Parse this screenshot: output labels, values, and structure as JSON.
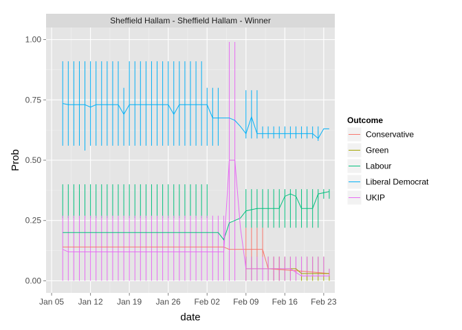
{
  "chart_data": {
    "type": "line",
    "title": "Sheffield Hallam - Sheffield Hallam - Winner",
    "xlabel": "date",
    "ylabel": "Prob",
    "xlim": [
      "2015-01-04",
      "2015-02-25"
    ],
    "ylim": [
      -0.05,
      1.05
    ],
    "x_ticks": [
      {
        "date": "2015-01-05",
        "label": "Jan 05"
      },
      {
        "date": "2015-01-12",
        "label": "Jan 12"
      },
      {
        "date": "2015-01-19",
        "label": "Jan 19"
      },
      {
        "date": "2015-01-26",
        "label": "Jan 26"
      },
      {
        "date": "2015-02-02",
        "label": "Feb 02"
      },
      {
        "date": "2015-02-09",
        "label": "Feb 09"
      },
      {
        "date": "2015-02-16",
        "label": "Feb 16"
      },
      {
        "date": "2015-02-23",
        "label": "Feb 23"
      }
    ],
    "y_ticks": [
      {
        "value": 0.0,
        "label": "0.00"
      },
      {
        "value": 0.25,
        "label": "0.25"
      },
      {
        "value": 0.5,
        "label": "0.50"
      },
      {
        "value": 0.75,
        "label": "0.75"
      },
      {
        "value": 1.0,
        "label": "1.00"
      }
    ],
    "grid": true,
    "legend": {
      "title": "Outcome",
      "position": "right"
    },
    "series": [
      {
        "name": "Conservative",
        "color": "#F8766D",
        "line": [
          [
            "2015-01-07",
            0.14
          ],
          [
            "2015-02-05",
            0.14
          ],
          [
            "2015-02-06",
            0.13
          ],
          [
            "2015-02-09",
            0.13
          ],
          [
            "2015-02-12",
            0.13
          ],
          [
            "2015-02-13",
            0.05
          ],
          [
            "2015-02-19",
            0.04
          ],
          [
            "2015-02-24",
            0.03
          ]
        ],
        "bars": [
          [
            "2015-02-09",
            0.05,
            0.22
          ],
          [
            "2015-02-10",
            0.05,
            0.22
          ],
          [
            "2015-02-11",
            0.05,
            0.22
          ],
          [
            "2015-02-12",
            0.05,
            0.22
          ],
          [
            "2015-02-13",
            0.0,
            0.1
          ],
          [
            "2015-02-14",
            0.0,
            0.1
          ],
          [
            "2015-02-15",
            0.0,
            0.1
          ]
        ]
      },
      {
        "name": "Green",
        "color": "#A3A500",
        "line": [
          [
            "2015-02-09",
            0.05
          ],
          [
            "2015-02-18",
            0.05
          ],
          [
            "2015-02-19",
            0.03
          ],
          [
            "2015-02-24",
            0.03
          ]
        ],
        "bars": [
          [
            "2015-02-09",
            0.0,
            0.1
          ],
          [
            "2015-02-10",
            0.0,
            0.1
          ],
          [
            "2015-02-11",
            0.0,
            0.1
          ],
          [
            "2015-02-12",
            0.0,
            0.1
          ],
          [
            "2015-02-13",
            0.0,
            0.1
          ],
          [
            "2015-02-14",
            0.0,
            0.1
          ],
          [
            "2015-02-15",
            0.0,
            0.1
          ],
          [
            "2015-02-16",
            0.0,
            0.1
          ],
          [
            "2015-02-17",
            0.0,
            0.1
          ],
          [
            "2015-02-18",
            0.0,
            0.1
          ],
          [
            "2015-02-19",
            0.0,
            0.1
          ],
          [
            "2015-02-20",
            0.0,
            0.1
          ],
          [
            "2015-02-21",
            0.0,
            0.1
          ],
          [
            "2015-02-22",
            0.0,
            0.1
          ],
          [
            "2015-02-23",
            0.0,
            0.1
          ],
          [
            "2015-02-24",
            0.0,
            0.05
          ]
        ]
      },
      {
        "name": "Labour",
        "color": "#00BF7D",
        "line": [
          [
            "2015-01-07",
            0.2
          ],
          [
            "2015-02-04",
            0.2
          ],
          [
            "2015-02-05",
            0.17
          ],
          [
            "2015-02-06",
            0.24
          ],
          [
            "2015-02-07",
            0.25
          ],
          [
            "2015-02-08",
            0.26
          ],
          [
            "2015-02-09",
            0.29
          ],
          [
            "2015-02-11",
            0.3
          ],
          [
            "2015-02-15",
            0.3
          ],
          [
            "2015-02-16",
            0.35
          ],
          [
            "2015-02-17",
            0.36
          ],
          [
            "2015-02-18",
            0.35
          ],
          [
            "2015-02-19",
            0.3
          ],
          [
            "2015-02-21",
            0.3
          ],
          [
            "2015-02-22",
            0.36
          ],
          [
            "2015-02-24",
            0.37
          ]
        ],
        "bars": [
          [
            "2015-01-07",
            0.26,
            0.4
          ],
          [
            "2015-01-08",
            0.26,
            0.4
          ],
          [
            "2015-01-09",
            0.26,
            0.4
          ],
          [
            "2015-01-10",
            0.26,
            0.4
          ],
          [
            "2015-01-11",
            0.26,
            0.4
          ],
          [
            "2015-01-12",
            0.26,
            0.4
          ],
          [
            "2015-01-13",
            0.26,
            0.4
          ],
          [
            "2015-01-14",
            0.26,
            0.4
          ],
          [
            "2015-01-15",
            0.26,
            0.4
          ],
          [
            "2015-01-16",
            0.26,
            0.4
          ],
          [
            "2015-01-17",
            0.26,
            0.4
          ],
          [
            "2015-01-18",
            0.26,
            0.4
          ],
          [
            "2015-01-19",
            0.26,
            0.4
          ],
          [
            "2015-01-20",
            0.26,
            0.4
          ],
          [
            "2015-01-21",
            0.26,
            0.4
          ],
          [
            "2015-01-22",
            0.26,
            0.4
          ],
          [
            "2015-01-23",
            0.26,
            0.4
          ],
          [
            "2015-01-24",
            0.26,
            0.4
          ],
          [
            "2015-01-25",
            0.26,
            0.4
          ],
          [
            "2015-01-26",
            0.26,
            0.4
          ],
          [
            "2015-01-27",
            0.26,
            0.4
          ],
          [
            "2015-01-28",
            0.26,
            0.4
          ],
          [
            "2015-01-29",
            0.26,
            0.4
          ],
          [
            "2015-01-30",
            0.26,
            0.4
          ],
          [
            "2015-01-31",
            0.26,
            0.4
          ],
          [
            "2015-02-01",
            0.26,
            0.4
          ],
          [
            "2015-02-02",
            0.26,
            0.4
          ],
          [
            "2015-02-09",
            0.22,
            0.38
          ],
          [
            "2015-02-10",
            0.22,
            0.38
          ],
          [
            "2015-02-11",
            0.22,
            0.38
          ],
          [
            "2015-02-12",
            0.22,
            0.38
          ],
          [
            "2015-02-13",
            0.22,
            0.38
          ],
          [
            "2015-02-14",
            0.22,
            0.38
          ],
          [
            "2015-02-15",
            0.22,
            0.38
          ],
          [
            "2015-02-16",
            0.22,
            0.38
          ],
          [
            "2015-02-17",
            0.22,
            0.38
          ],
          [
            "2015-02-18",
            0.22,
            0.38
          ],
          [
            "2015-02-19",
            0.22,
            0.38
          ],
          [
            "2015-02-20",
            0.22,
            0.38
          ],
          [
            "2015-02-21",
            0.22,
            0.38
          ],
          [
            "2015-02-22",
            0.22,
            0.38
          ],
          [
            "2015-02-23",
            0.34,
            0.38
          ],
          [
            "2015-02-24",
            0.34,
            0.38
          ]
        ]
      },
      {
        "name": "Liberal Democrat",
        "color": "#00B0F6",
        "line": [
          [
            "2015-01-07",
            0.735
          ],
          [
            "2015-01-08",
            0.73
          ],
          [
            "2015-01-11",
            0.73
          ],
          [
            "2015-01-12",
            0.72
          ],
          [
            "2015-01-13",
            0.73
          ],
          [
            "2015-01-17",
            0.73
          ],
          [
            "2015-01-18",
            0.69
          ],
          [
            "2015-01-19",
            0.73
          ],
          [
            "2015-01-26",
            0.73
          ],
          [
            "2015-01-27",
            0.69
          ],
          [
            "2015-01-28",
            0.73
          ],
          [
            "2015-02-02",
            0.73
          ],
          [
            "2015-02-03",
            0.675
          ],
          [
            "2015-02-06",
            0.675
          ],
          [
            "2015-02-07",
            0.665
          ],
          [
            "2015-02-08",
            0.64
          ],
          [
            "2015-02-09",
            0.61
          ],
          [
            "2015-02-10",
            0.68
          ],
          [
            "2015-02-11",
            0.61
          ],
          [
            "2015-02-21",
            0.61
          ],
          [
            "2015-02-22",
            0.59
          ],
          [
            "2015-02-23",
            0.63
          ],
          [
            "2015-02-24",
            0.63
          ]
        ],
        "bars": [
          [
            "2015-01-07",
            0.56,
            0.91
          ],
          [
            "2015-01-08",
            0.56,
            0.91
          ],
          [
            "2015-01-09",
            0.56,
            0.91
          ],
          [
            "2015-01-10",
            0.56,
            0.91
          ],
          [
            "2015-01-11",
            0.54,
            0.91
          ],
          [
            "2015-01-12",
            0.56,
            0.91
          ],
          [
            "2015-01-13",
            0.56,
            0.91
          ],
          [
            "2015-01-14",
            0.56,
            0.91
          ],
          [
            "2015-01-15",
            0.56,
            0.91
          ],
          [
            "2015-01-16",
            0.56,
            0.91
          ],
          [
            "2015-01-17",
            0.56,
            0.91
          ],
          [
            "2015-01-18",
            0.56,
            0.8
          ],
          [
            "2015-01-19",
            0.56,
            0.91
          ],
          [
            "2015-01-20",
            0.56,
            0.91
          ],
          [
            "2015-01-21",
            0.56,
            0.91
          ],
          [
            "2015-01-22",
            0.56,
            0.91
          ],
          [
            "2015-01-23",
            0.56,
            0.91
          ],
          [
            "2015-01-24",
            0.56,
            0.91
          ],
          [
            "2015-01-25",
            0.56,
            0.91
          ],
          [
            "2015-01-26",
            0.56,
            0.91
          ],
          [
            "2015-01-27",
            0.56,
            0.91
          ],
          [
            "2015-01-28",
            0.56,
            0.91
          ],
          [
            "2015-01-29",
            0.56,
            0.91
          ],
          [
            "2015-01-30",
            0.56,
            0.91
          ],
          [
            "2015-01-31",
            0.56,
            0.91
          ],
          [
            "2015-02-01",
            0.56,
            0.91
          ],
          [
            "2015-02-02",
            0.56,
            0.8
          ],
          [
            "2015-02-03",
            0.56,
            0.8
          ],
          [
            "2015-02-04",
            0.56,
            0.8
          ],
          [
            "2015-02-09",
            0.59,
            0.79
          ],
          [
            "2015-02-10",
            0.59,
            0.79
          ],
          [
            "2015-02-11",
            0.59,
            0.79
          ],
          [
            "2015-02-12",
            0.59,
            0.64
          ],
          [
            "2015-02-13",
            0.59,
            0.64
          ],
          [
            "2015-02-14",
            0.59,
            0.64
          ],
          [
            "2015-02-15",
            0.59,
            0.64
          ],
          [
            "2015-02-16",
            0.59,
            0.64
          ],
          [
            "2015-02-17",
            0.59,
            0.64
          ],
          [
            "2015-02-18",
            0.59,
            0.64
          ],
          [
            "2015-02-19",
            0.59,
            0.64
          ],
          [
            "2015-02-20",
            0.59,
            0.64
          ],
          [
            "2015-02-21",
            0.59,
            0.64
          ],
          [
            "2015-02-22",
            0.58,
            0.64
          ]
        ]
      },
      {
        "name": "UKIP",
        "color": "#E76BF3",
        "line": [
          [
            "2015-01-07",
            0.13
          ],
          [
            "2015-01-08",
            0.12
          ],
          [
            "2015-02-05",
            0.12
          ],
          [
            "2015-02-06",
            0.5
          ],
          [
            "2015-02-07",
            0.5
          ],
          [
            "2015-02-08",
            0.22
          ],
          [
            "2015-02-09",
            0.05
          ],
          [
            "2015-02-16",
            0.05
          ],
          [
            "2015-02-17",
            0.05
          ],
          [
            "2015-02-19",
            0.02
          ],
          [
            "2015-02-24",
            0.02
          ]
        ],
        "bars": [
          [
            "2015-01-07",
            0.0,
            0.27
          ],
          [
            "2015-01-08",
            0.0,
            0.27
          ],
          [
            "2015-01-09",
            0.0,
            0.27
          ],
          [
            "2015-01-10",
            0.0,
            0.27
          ],
          [
            "2015-01-11",
            0.0,
            0.27
          ],
          [
            "2015-01-12",
            0.0,
            0.27
          ],
          [
            "2015-01-13",
            0.0,
            0.27
          ],
          [
            "2015-01-14",
            0.0,
            0.27
          ],
          [
            "2015-01-15",
            0.0,
            0.27
          ],
          [
            "2015-01-16",
            0.0,
            0.27
          ],
          [
            "2015-01-17",
            0.0,
            0.27
          ],
          [
            "2015-01-18",
            0.0,
            0.27
          ],
          [
            "2015-01-19",
            0.0,
            0.27
          ],
          [
            "2015-01-20",
            0.0,
            0.27
          ],
          [
            "2015-01-21",
            0.0,
            0.27
          ],
          [
            "2015-01-22",
            0.0,
            0.27
          ],
          [
            "2015-01-23",
            0.0,
            0.27
          ],
          [
            "2015-01-24",
            0.0,
            0.27
          ],
          [
            "2015-01-25",
            0.0,
            0.27
          ],
          [
            "2015-01-26",
            0.0,
            0.27
          ],
          [
            "2015-01-27",
            0.0,
            0.27
          ],
          [
            "2015-01-28",
            0.0,
            0.27
          ],
          [
            "2015-01-29",
            0.0,
            0.27
          ],
          [
            "2015-01-30",
            0.0,
            0.27
          ],
          [
            "2015-01-31",
            0.0,
            0.27
          ],
          [
            "2015-02-01",
            0.0,
            0.27
          ],
          [
            "2015-02-02",
            0.0,
            0.27
          ],
          [
            "2015-02-03",
            0.0,
            0.27
          ],
          [
            "2015-02-04",
            0.0,
            0.27
          ],
          [
            "2015-02-05",
            0.0,
            0.27
          ],
          [
            "2015-02-06",
            0.0,
            0.99
          ],
          [
            "2015-02-07",
            0.0,
            0.99
          ],
          [
            "2015-02-09",
            0.0,
            0.1
          ],
          [
            "2015-02-10",
            0.0,
            0.1
          ],
          [
            "2015-02-11",
            0.0,
            0.1
          ],
          [
            "2015-02-12",
            0.0,
            0.1
          ],
          [
            "2015-02-13",
            0.0,
            0.1
          ],
          [
            "2015-02-14",
            0.0,
            0.1
          ],
          [
            "2015-02-15",
            0.0,
            0.1
          ],
          [
            "2015-02-16",
            0.0,
            0.1
          ],
          [
            "2015-02-17",
            0.0,
            0.1
          ],
          [
            "2015-02-18",
            0.0,
            0.1
          ],
          [
            "2015-02-19",
            0.02,
            0.1
          ],
          [
            "2015-02-20",
            0.02,
            0.1
          ],
          [
            "2015-02-21",
            0.02,
            0.1
          ],
          [
            "2015-02-22",
            0.02,
            0.1
          ],
          [
            "2015-02-23",
            0.02,
            0.1
          ],
          [
            "2015-02-24",
            0.02,
            0.05
          ]
        ]
      }
    ]
  }
}
